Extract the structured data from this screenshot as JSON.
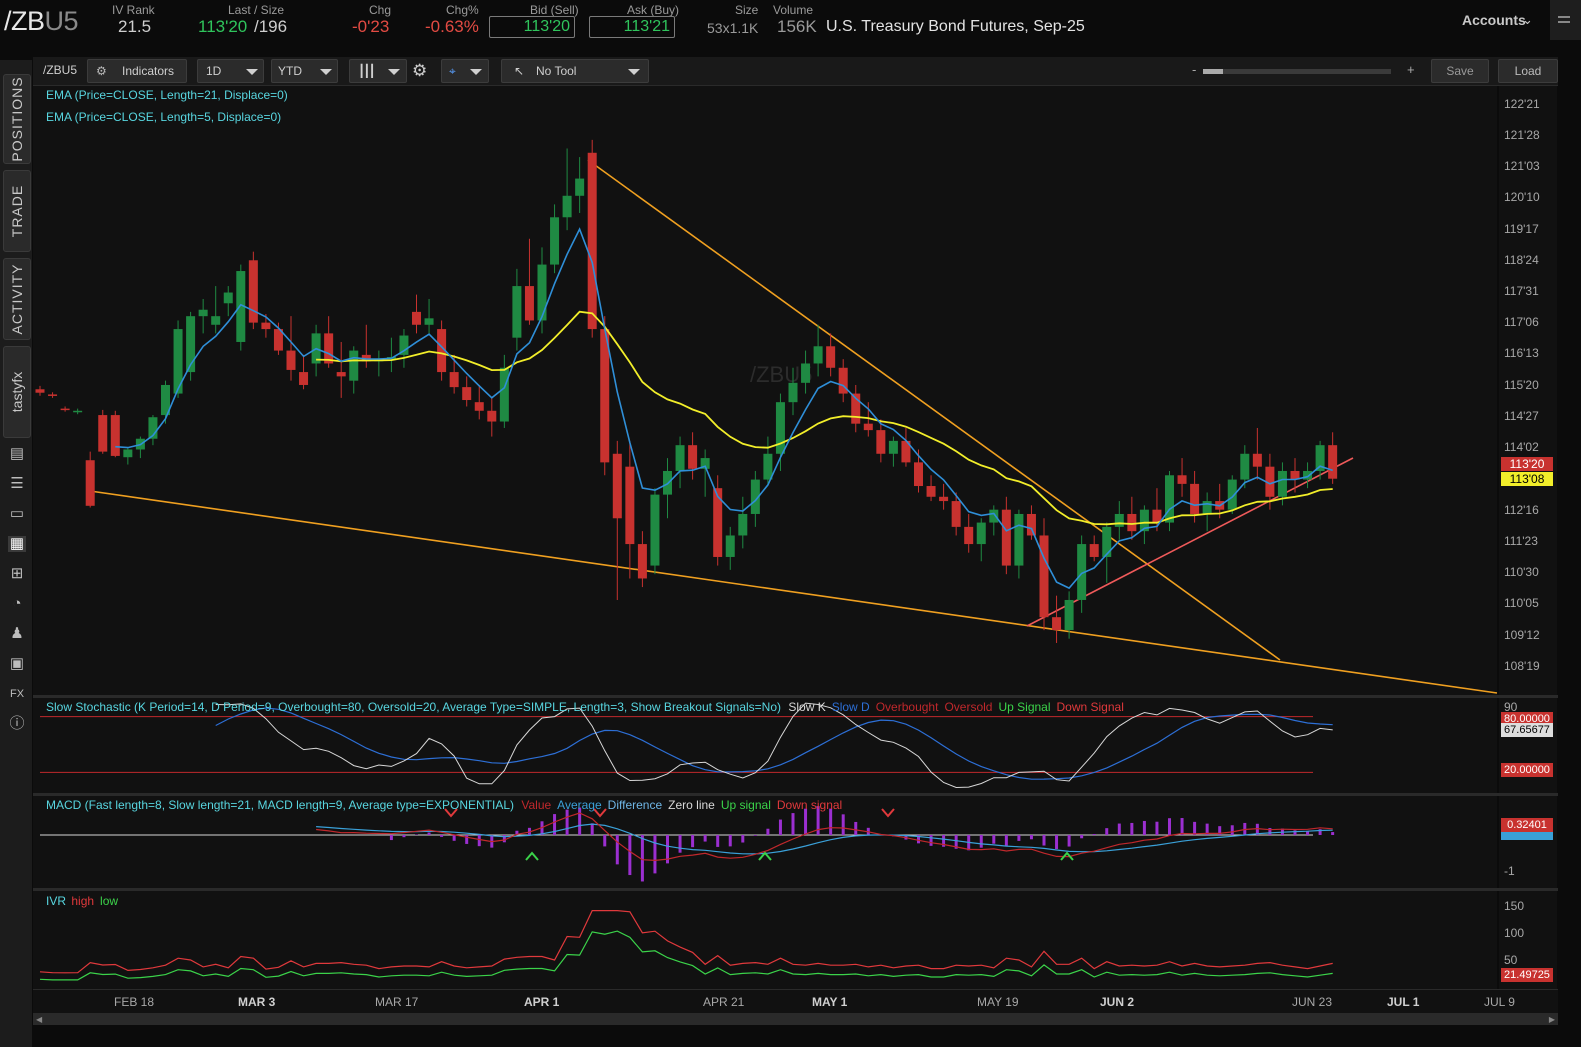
{
  "header": {
    "symbol_main": "/ZB",
    "symbol_suffix": "U5",
    "iv_rank_label": "IV Rank",
    "iv_rank_value": "21.5",
    "last_size_label": "Last / Size",
    "last_value": "113'20",
    "size_value": "/196",
    "chg_label": "Chg",
    "chg_value": "-0'23",
    "chg_pct_label": "Chg%",
    "chg_pct_value": "-0.63%",
    "bid_label": "Bid (Sell)",
    "bid_value": "113'20",
    "ask_label": "Ask (Buy)",
    "ask_value": "113'21",
    "size_label": "Size",
    "size_detail": "53x1.1K",
    "volume_label": "Volume",
    "volume_value": "156K",
    "description": "U.S. Treasury Bond Futures, Sep-25",
    "accounts_label": "Accounts"
  },
  "sidebar": {
    "tabs": [
      "POSITIONS",
      "TRADE",
      "ACTIVITY",
      "tastyfx"
    ]
  },
  "toolbar": {
    "symbol": "/ZBU5",
    "indicators_label": "Indicators",
    "interval": "1D",
    "range": "YTD",
    "tool": "No Tool",
    "zoom_minus": "-",
    "zoom_plus": "+",
    "save_label": "Save",
    "load_label": "Load"
  },
  "price_panel": {
    "ema_slow_label": "EMA (Price=CLOSE, Length=21, Displace=0)",
    "ema_fast_label": "EMA (Price=CLOSE, Length=5, Displace=0)",
    "watermark": "/ZBU5",
    "y_ticks": [
      "122'21",
      "121'28",
      "121'03",
      "120'10",
      "119'17",
      "118'24",
      "117'31",
      "117'06",
      "116'13",
      "115'20",
      "114'27",
      "114'02",
      "112'16",
      "111'23",
      "110'30",
      "110'05",
      "109'12",
      "108'19"
    ],
    "last_tag": "113'20",
    "ema_tag": "113'08"
  },
  "stochastic_panel": {
    "title": "Slow Stochastic (K Period=14, D Period=9, Overbought=80, Oversold=20, Average Type=SIMPLE, Length=3, Show Breakout Signals=No)",
    "legend": [
      {
        "text": "Slow K",
        "color": "#d8d8d8"
      },
      {
        "text": "Slow D",
        "color": "#2d6fd6"
      },
      {
        "text": "Overbought",
        "color": "#c0282c"
      },
      {
        "text": "Oversold",
        "color": "#c0282c"
      },
      {
        "text": "Up Signal",
        "color": "#3bd34a"
      },
      {
        "text": "Down Signal",
        "color": "#e0393c"
      }
    ],
    "overbought_tag": "80.00000",
    "value_tag": "67.65677",
    "oversold_tag": "20.00000",
    "axis_top": "90"
  },
  "macd_panel": {
    "title": "MACD (Fast length=8, Slow length=21, MACD length=9, Average type=EXPONENTIAL)",
    "legend": [
      {
        "text": "Value",
        "color": "#c0282c"
      },
      {
        "text": "Average",
        "color": "#3aa0d8"
      },
      {
        "text": "Difference",
        "color": "#6fb6e6"
      },
      {
        "text": "Zero line",
        "color": "#d8d8d8"
      },
      {
        "text": "Up signal",
        "color": "#3bd34a"
      },
      {
        "text": "Down signal",
        "color": "#e0393c"
      }
    ],
    "value_tag": "0.32401",
    "axis_low": "-1"
  },
  "ivr_panel": {
    "title": "IVR",
    "legend": [
      {
        "text": "high",
        "color": "#e0393c"
      },
      {
        "text": "low",
        "color": "#3bd34a"
      }
    ],
    "y_ticks": [
      "150",
      "100",
      "50"
    ],
    "value_tag": "21.49725"
  },
  "x_axis": {
    "labels": [
      "FEB 18",
      "MAR 3",
      "MAR 17",
      "APR 1",
      "APR 21",
      "MAY 1",
      "MAY 19",
      "JUN 2",
      "JUN 23",
      "JUL 1",
      "JUL 9"
    ],
    "bold": [
      "MAR 3",
      "APR 1",
      "MAY 1",
      "JUN 2"
    ]
  },
  "colors": {
    "up_candle": "#1f8a43",
    "down_candle": "#c8322f",
    "ema_fast": "#2f8fd8",
    "ema_slow": "#f2ee2a",
    "trendline": "#f0a020",
    "support_line": "#ef5a5a"
  },
  "chart_data": {
    "type": "candlestick",
    "ylim_32nds_min": 108.59,
    "ylim_32nds_max": 122.66,
    "candles": [
      [
        115.7,
        115.78,
        115.55,
        115.62
      ],
      [
        115.58,
        115.63,
        115.5,
        115.55
      ],
      [
        115.25,
        115.3,
        115.18,
        115.22
      ],
      [
        115.18,
        115.25,
        115.12,
        115.2
      ],
      [
        114.05,
        114.25,
        112.95,
        112.99
      ],
      [
        115.1,
        115.22,
        114.2,
        114.25
      ],
      [
        115.1,
        115.2,
        114.12,
        114.15
      ],
      [
        114.12,
        114.35,
        113.95,
        114.3
      ],
      [
        114.3,
        114.6,
        114.1,
        114.55
      ],
      [
        114.55,
        115.1,
        114.4,
        115.05
      ],
      [
        115.1,
        115.9,
        114.9,
        115.8
      ],
      [
        115.6,
        117.3,
        115.5,
        117.1
      ],
      [
        116.1,
        117.5,
        115.9,
        117.4
      ],
      [
        117.4,
        117.8,
        117.0,
        117.55
      ],
      [
        117.2,
        118.1,
        117.0,
        117.4
      ],
      [
        117.7,
        118.1,
        117.4,
        117.95
      ],
      [
        116.8,
        118.6,
        116.6,
        118.45
      ],
      [
        118.7,
        118.9,
        117.1,
        117.25
      ],
      [
        117.25,
        117.45,
        116.9,
        117.1
      ],
      [
        117.1,
        117.25,
        116.5,
        116.6
      ],
      [
        116.6,
        117.4,
        115.9,
        116.15
      ],
      [
        116.1,
        116.5,
        115.7,
        115.8
      ],
      [
        116.3,
        117.2,
        116.0,
        117.0
      ],
      [
        117.0,
        117.4,
        116.2,
        116.3
      ],
      [
        116.1,
        116.8,
        115.5,
        116.0
      ],
      [
        115.9,
        116.7,
        115.6,
        116.6
      ],
      [
        116.5,
        117.2,
        116.2,
        116.35
      ],
      [
        116.35,
        116.6,
        116.0,
        116.4
      ],
      [
        116.4,
        116.9,
        116.1,
        116.45
      ],
      [
        116.5,
        117.1,
        116.2,
        116.95
      ],
      [
        117.5,
        117.9,
        117.0,
        117.2
      ],
      [
        117.2,
        117.8,
        117.0,
        117.35
      ],
      [
        117.1,
        117.3,
        115.9,
        116.1
      ],
      [
        116.1,
        116.5,
        115.6,
        115.75
      ],
      [
        115.75,
        116.0,
        115.3,
        115.45
      ],
      [
        115.4,
        115.8,
        115.0,
        115.2
      ],
      [
        115.2,
        115.5,
        114.6,
        114.95
      ],
      [
        114.95,
        116.5,
        114.8,
        116.2
      ],
      [
        116.9,
        118.5,
        116.6,
        118.1
      ],
      [
        118.1,
        119.2,
        117.2,
        117.3
      ],
      [
        117.3,
        119.0,
        117.0,
        118.6
      ],
      [
        118.6,
        120.0,
        118.4,
        119.7
      ],
      [
        119.7,
        121.3,
        119.4,
        120.2
      ],
      [
        120.2,
        121.1,
        119.8,
        120.6
      ],
      [
        121.2,
        121.5,
        116.9,
        117.1
      ],
      [
        117.1,
        117.4,
        113.7,
        114.0
      ],
      [
        114.2,
        114.5,
        110.8,
        112.7
      ],
      [
        113.9,
        114.5,
        111.3,
        112.1
      ],
      [
        112.1,
        112.4,
        111.1,
        111.3
      ],
      [
        111.6,
        113.4,
        111.4,
        113.25
      ],
      [
        113.25,
        114.1,
        112.7,
        113.8
      ],
      [
        113.8,
        114.6,
        113.4,
        114.4
      ],
      [
        114.4,
        114.7,
        113.6,
        113.85
      ],
      [
        113.85,
        114.3,
        113.2,
        114.1
      ],
      [
        113.4,
        113.7,
        111.6,
        111.8
      ],
      [
        111.8,
        112.5,
        111.5,
        112.3
      ],
      [
        112.3,
        113.2,
        112.0,
        112.8
      ],
      [
        112.8,
        113.8,
        112.5,
        113.6
      ],
      [
        113.6,
        114.6,
        113.5,
        114.2
      ],
      [
        114.2,
        115.6,
        113.8,
        115.4
      ],
      [
        115.4,
        116.2,
        115.1,
        115.85
      ],
      [
        115.85,
        116.6,
        115.6,
        116.3
      ],
      [
        116.3,
        117.2,
        116.0,
        116.7
      ],
      [
        116.7,
        117.0,
        116.0,
        116.2
      ],
      [
        116.2,
        116.4,
        115.4,
        115.6
      ],
      [
        115.6,
        115.8,
        114.7,
        114.9
      ],
      [
        114.9,
        115.4,
        114.6,
        114.75
      ],
      [
        114.75,
        115.0,
        114.0,
        114.2
      ],
      [
        114.2,
        114.6,
        113.9,
        114.5
      ],
      [
        114.5,
        114.8,
        113.9,
        114.0
      ],
      [
        114.0,
        114.3,
        113.3,
        113.45
      ],
      [
        113.45,
        113.7,
        113.1,
        113.2
      ],
      [
        113.2,
        113.5,
        112.9,
        113.1
      ],
      [
        113.1,
        113.3,
        112.3,
        112.5
      ],
      [
        112.5,
        112.8,
        111.9,
        112.1
      ],
      [
        112.1,
        112.7,
        111.7,
        112.6
      ],
      [
        112.6,
        113.0,
        112.3,
        112.9
      ],
      [
        112.9,
        113.2,
        111.4,
        111.6
      ],
      [
        111.6,
        112.9,
        111.3,
        112.8
      ],
      [
        112.8,
        113.0,
        112.2,
        112.3
      ],
      [
        112.3,
        112.7,
        110.1,
        110.4
      ],
      [
        110.4,
        110.9,
        109.8,
        110.1
      ],
      [
        110.1,
        111.0,
        109.9,
        110.8
      ],
      [
        110.8,
        112.3,
        110.5,
        112.1
      ],
      [
        112.1,
        112.3,
        111.7,
        111.8
      ],
      [
        111.8,
        112.6,
        111.2,
        112.5
      ],
      [
        112.5,
        113.1,
        112.2,
        112.8
      ],
      [
        112.8,
        113.2,
        112.2,
        112.4
      ],
      [
        112.4,
        113.0,
        112.1,
        112.9
      ],
      [
        112.9,
        113.4,
        112.4,
        112.6
      ],
      [
        112.6,
        113.8,
        112.4,
        113.7
      ],
      [
        113.7,
        114.1,
        113.2,
        113.5
      ],
      [
        113.5,
        113.8,
        112.6,
        112.8
      ],
      [
        112.8,
        113.3,
        112.4,
        113.1
      ],
      [
        113.1,
        113.5,
        112.7,
        112.9
      ],
      [
        112.9,
        113.7,
        112.8,
        113.6
      ],
      [
        113.6,
        114.4,
        113.4,
        114.2
      ],
      [
        114.2,
        114.8,
        113.6,
        113.9
      ],
      [
        113.9,
        114.2,
        112.9,
        113.2
      ],
      [
        113.2,
        114.0,
        113.0,
        113.8
      ],
      [
        113.8,
        114.1,
        113.3,
        113.6
      ],
      [
        113.6,
        114.0,
        113.4,
        113.8
      ],
      [
        113.8,
        114.5,
        113.6,
        114.4
      ],
      [
        114.4,
        114.7,
        113.5,
        113.62
      ]
    ]
  }
}
